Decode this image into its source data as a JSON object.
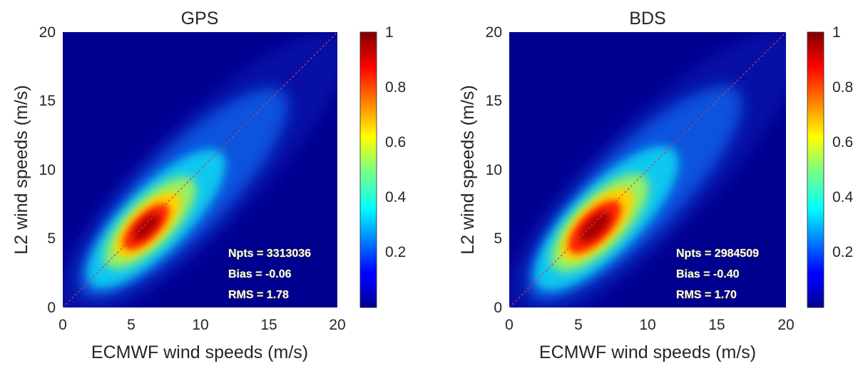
{
  "chart_data": [
    {
      "type": "heatmap",
      "title": "GPS",
      "xlabel": "ECMWF wind speeds (m/s)",
      "ylabel": "L2 wind speeds (m/s)",
      "xlim": [
        0,
        20
      ],
      "ylim": [
        0,
        20
      ],
      "xticks": [
        "0",
        "5",
        "10",
        "15",
        "20"
      ],
      "yticks": [
        "0",
        "5",
        "10",
        "15",
        "20"
      ],
      "colorbar": {
        "min": 0,
        "max": 1,
        "ticks": [
          "0.2",
          "0.4",
          "0.6",
          "0.8",
          "1"
        ],
        "colormap": "jet"
      },
      "density_peak": {
        "x": 6.0,
        "y": 5.8
      },
      "reference_line": "1:1",
      "stats": {
        "npts": "Npts = 3313036",
        "bias": "Bias = -0.06",
        "rms": "RMS = 1.78"
      }
    },
    {
      "type": "heatmap",
      "title": "BDS",
      "xlabel": "ECMWF wind speeds (m/s)",
      "ylabel": "L2 wind speeds (m/s)",
      "xlim": [
        0,
        20
      ],
      "ylim": [
        0,
        20
      ],
      "xticks": [
        "0",
        "5",
        "10",
        "15",
        "20"
      ],
      "yticks": [
        "0",
        "5",
        "10",
        "15",
        "20"
      ],
      "colorbar": {
        "min": 0,
        "max": 1,
        "ticks": [
          "0.2",
          "0.4",
          "0.6",
          "0.8",
          "1"
        ],
        "colormap": "jet"
      },
      "density_peak": {
        "x": 6.2,
        "y": 5.8
      },
      "reference_line": "1:1",
      "stats": {
        "npts": "Npts = 2984509",
        "bias": "Bias = -0.40",
        "rms": "RMS = 1.70"
      }
    }
  ]
}
